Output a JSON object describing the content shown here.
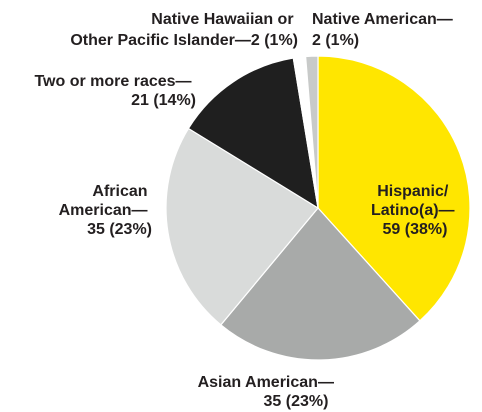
{
  "chart_data": {
    "type": "pie",
    "title": "",
    "slices": [
      {
        "name": "Hispanic/Latino(a)",
        "value": 59,
        "percent": 38,
        "color": "#ffe600"
      },
      {
        "name": "Asian American",
        "value": 35,
        "percent": 23,
        "color": "#a8aaa9"
      },
      {
        "name": "African American",
        "value": 35,
        "percent": 23,
        "color": "#d9dbda"
      },
      {
        "name": "Two or more races",
        "value": 21,
        "percent": 14,
        "color": "#1f1f1f"
      },
      {
        "name": "Native Hawaiian or Other Pacific Islander",
        "value": 2,
        "percent": 1,
        "color": "#ffffff"
      },
      {
        "name": "Native American",
        "value": 2,
        "percent": 1,
        "color": "#c8cac9"
      }
    ],
    "labels": {
      "hispanic": [
        "Hispanic/",
        "Latino(a)—",
        "59 (38%)"
      ],
      "asian": [
        "Asian American—",
        "35 (23%)"
      ],
      "african": [
        "African",
        "American—",
        "35 (23%)"
      ],
      "two_or_more": [
        "Two or more races—",
        "21 (14%)"
      ],
      "native_hawaiian": [
        "Native Hawaiian or",
        "Other Pacific Islander—2 (1%)"
      ],
      "native_american": [
        "Native American—",
        "2 (1%)"
      ]
    }
  }
}
